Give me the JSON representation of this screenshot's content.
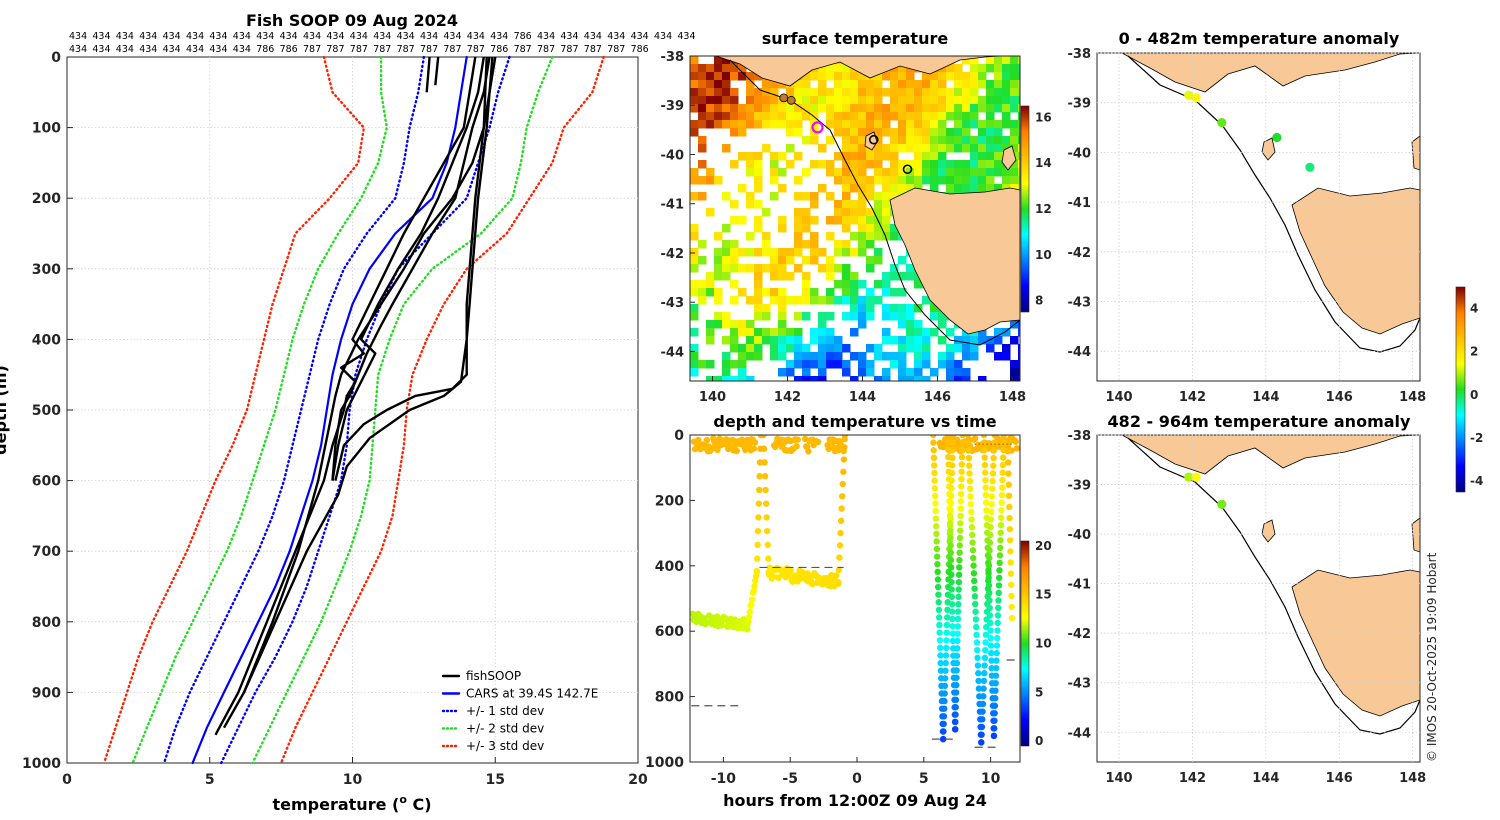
{
  "chart_data": [
    {
      "type": "line",
      "title": "Fish SOOP 09 Aug 2024",
      "xlabel": "temperature (o C)",
      "xlabel_unit_base": "temperature (",
      "xlabel_unit_sup": "o",
      "xlabel_unit_tail": " C)",
      "ylabel": "depth (m)",
      "xlim": [
        0,
        20
      ],
      "ylim": [
        0,
        1000
      ],
      "y_reversed": true,
      "xticks": [
        "0",
        "5",
        "10",
        "15",
        "20"
      ],
      "yticks": [
        "0",
        "100",
        "200",
        "300",
        "400",
        "500",
        "600",
        "700",
        "800",
        "900",
        "1000"
      ],
      "id_row1": [
        "434",
        "434",
        "434",
        "434",
        "434",
        "434",
        "434",
        "434",
        "434",
        "434",
        "434",
        "434",
        "434",
        "434",
        "434",
        "434",
        "434",
        "434",
        "434",
        "786",
        "434",
        "434",
        "434",
        "434",
        "434",
        "434",
        "434"
      ],
      "id_row2": [
        "434",
        "434",
        "434",
        "434",
        "434",
        "434",
        "434",
        "434",
        "786",
        "786",
        "787",
        "787",
        "787",
        "787",
        "787",
        "787",
        "787",
        "787",
        "786",
        "787",
        "787",
        "787",
        "787",
        "787",
        "786"
      ],
      "legend": [
        "fishSOOP",
        "CARS at 39.4S 142.7E",
        "+/- 1 std dev",
        "+/- 2 std dev",
        "+/- 3 std dev"
      ],
      "series": [
        {
          "name": "CARS at 39.4S 142.7E",
          "color": "#0000ff",
          "depth": [
            0,
            50,
            100,
            150,
            200,
            250,
            300,
            350,
            400,
            450,
            500,
            550,
            600,
            650,
            700,
            750,
            800,
            850,
            900,
            950,
            1000
          ],
          "temp": [
            14.0,
            13.8,
            13.6,
            13.3,
            12.8,
            11.5,
            10.6,
            10.0,
            9.6,
            9.3,
            9.1,
            8.9,
            8.6,
            8.2,
            7.8,
            7.3,
            6.7,
            6.1,
            5.5,
            4.9,
            4.4
          ]
        },
        {
          "name": "+/- 1 std dev lower",
          "color": "#0000ff",
          "depth": [
            0,
            50,
            100,
            150,
            200,
            250,
            300,
            350,
            400,
            450,
            500,
            550,
            600,
            650,
            700,
            750,
            800,
            850,
            900,
            950,
            1000
          ],
          "temp": [
            12.5,
            12.3,
            12.0,
            11.8,
            11.5,
            10.5,
            9.7,
            9.2,
            8.8,
            8.5,
            8.2,
            7.9,
            7.6,
            7.2,
            6.7,
            6.1,
            5.5,
            4.9,
            4.3,
            3.8,
            3.4
          ]
        },
        {
          "name": "+/- 1 std dev upper",
          "color": "#0000ff",
          "depth": [
            0,
            50,
            100,
            150,
            200,
            250,
            300,
            350,
            400,
            450,
            500,
            550,
            600,
            650,
            700,
            750,
            800,
            850,
            900,
            950,
            1000
          ],
          "temp": [
            15.5,
            15.1,
            14.8,
            14.4,
            14.0,
            12.8,
            11.6,
            11.0,
            10.5,
            10.1,
            9.9,
            9.8,
            9.6,
            9.2,
            8.8,
            8.4,
            7.9,
            7.3,
            6.6,
            6.0,
            5.4
          ]
        },
        {
          "name": "+/- 2 std dev lower",
          "color": "#22dd22",
          "depth": [
            0,
            50,
            100,
            150,
            200,
            250,
            300,
            350,
            400,
            450,
            500,
            550,
            600,
            650,
            700,
            750,
            800,
            850,
            900,
            950,
            1000
          ],
          "temp": [
            11.0,
            11.0,
            11.2,
            10.9,
            10.3,
            9.5,
            8.8,
            8.3,
            7.9,
            7.6,
            7.3,
            6.9,
            6.5,
            6.1,
            5.6,
            5.0,
            4.4,
            3.8,
            3.3,
            2.8,
            2.3
          ]
        },
        {
          "name": "+/- 2 std dev upper",
          "color": "#22dd22",
          "depth": [
            0,
            50,
            100,
            150,
            200,
            250,
            300,
            350,
            400,
            450,
            500,
            550,
            600,
            650,
            700,
            750,
            800,
            850,
            900,
            950,
            1000
          ],
          "temp": [
            17.0,
            16.5,
            16.1,
            15.9,
            15.6,
            14.5,
            12.8,
            11.8,
            11.3,
            10.9,
            10.8,
            10.7,
            10.6,
            10.3,
            9.9,
            9.4,
            8.9,
            8.3,
            7.7,
            7.1,
            6.5
          ]
        },
        {
          "name": "+/- 3 std dev lower",
          "color": "#ff2200",
          "depth": [
            0,
            50,
            100,
            150,
            200,
            250,
            300,
            350,
            400,
            450,
            500,
            550,
            600,
            650,
            700,
            750,
            800,
            850,
            900,
            950,
            1000
          ],
          "temp": [
            9.0,
            9.3,
            10.4,
            10.2,
            9.2,
            8.0,
            7.6,
            7.2,
            6.9,
            6.6,
            6.3,
            5.8,
            5.2,
            4.7,
            4.2,
            3.6,
            3.0,
            2.5,
            2.1,
            1.7,
            1.3
          ]
        },
        {
          "name": "+/- 3 std dev upper",
          "color": "#ff2200",
          "depth": [
            0,
            50,
            100,
            150,
            200,
            250,
            300,
            350,
            400,
            450,
            500,
            550,
            600,
            650,
            700,
            750,
            800,
            850,
            900,
            950,
            1000
          ],
          "temp": [
            18.8,
            18.4,
            17.4,
            17.0,
            16.2,
            15.4,
            14.0,
            13.2,
            12.6,
            12.1,
            11.9,
            11.8,
            11.6,
            11.4,
            11.0,
            10.4,
            9.8,
            9.2,
            8.6,
            8.0,
            7.5
          ]
        }
      ],
      "fish_profiles": [
        {
          "depth": [
            0,
            50
          ],
          "temp": [
            12.7,
            12.6
          ]
        },
        {
          "depth": [
            0,
            40
          ],
          "temp": [
            13.0,
            12.9
          ]
        },
        {
          "depth": [
            0,
            50,
            100,
            200,
            250,
            300,
            350,
            380,
            420,
            450,
            480,
            500,
            550,
            600
          ],
          "temp": [
            14.8,
            14.6,
            14.2,
            13.6,
            12.8,
            12.1,
            11.4,
            11.0,
            10.5,
            10.2,
            9.9,
            9.6,
            9.4,
            9.3
          ]
        },
        {
          "depth": [
            0,
            50,
            100,
            150,
            200,
            250,
            300,
            350,
            400,
            450,
            480,
            520,
            560,
            600,
            700,
            800,
            900,
            950
          ],
          "temp": [
            15.0,
            14.8,
            14.6,
            14.2,
            13.5,
            12.5,
            11.8,
            11.0,
            10.2,
            9.6,
            9.4,
            9.2,
            9.0,
            8.8,
            8.1,
            7.2,
            6.2,
            5.5
          ]
        },
        {
          "depth": [
            0,
            50,
            100,
            150,
            200,
            250,
            300,
            350,
            400,
            420,
            440,
            460,
            480,
            500,
            550,
            600,
            700,
            800,
            900,
            960
          ],
          "temp": [
            14.3,
            14.1,
            13.9,
            13.2,
            12.5,
            11.8,
            11.2,
            10.6,
            10.0,
            10.4,
            9.6,
            10.1,
            9.8,
            9.7,
            9.3,
            9.0,
            8.0,
            7.0,
            6.0,
            5.2
          ]
        },
        {
          "depth": [
            0,
            50,
            100,
            150,
            200,
            250,
            300,
            350,
            400,
            420,
            460,
            500,
            550,
            600
          ],
          "temp": [
            14.6,
            14.4,
            14.0,
            13.5,
            13.0,
            12.4,
            11.6,
            10.9,
            10.3,
            10.8,
            10.3,
            9.8,
            9.5,
            9.3
          ]
        },
        {
          "depth": [
            0,
            100,
            200,
            300,
            350,
            400,
            450,
            470,
            480,
            500,
            520,
            550,
            600
          ],
          "temp": [
            14.9,
            14.7,
            14.4,
            14.2,
            14.1,
            14.0,
            14.0,
            13.5,
            12.2,
            11.2,
            10.4,
            9.7,
            9.4
          ]
        },
        {
          "depth": [
            0,
            100,
            200,
            300,
            350,
            400,
            460,
            480,
            500,
            540,
            580,
            620,
            700,
            800,
            900
          ],
          "temp": [
            14.7,
            14.6,
            14.3,
            14.1,
            14.0,
            14.0,
            13.8,
            13.2,
            12.0,
            10.6,
            9.8,
            9.5,
            8.4,
            7.3,
            6.2
          ]
        }
      ]
    },
    {
      "type": "heatmap",
      "title": "surface temperature",
      "xticks": [
        "140",
        "142",
        "144",
        "146",
        "148"
      ],
      "yticks": [
        "-38",
        "-39",
        "-40",
        "-41",
        "-42",
        "-43",
        "-44"
      ],
      "lon_range": [
        139.4,
        148.2
      ],
      "lat_range": [
        -44.6,
        -38.0
      ],
      "colorbar_ticks": [
        "16",
        "14",
        "12",
        "10",
        "8"
      ],
      "colorbar_range": [
        7.5,
        16.5
      ]
    },
    {
      "type": "scatter",
      "title": "depth and temperature vs time",
      "xlabel": "hours from 12:00Z 09 Aug 24",
      "xlim": [
        -12.5,
        12.2
      ],
      "ylim": [
        0,
        1000
      ],
      "y_reversed": true,
      "xticks": [
        "-10",
        "-5",
        "0",
        "5",
        "10"
      ],
      "yticks": [
        "0",
        "200",
        "400",
        "600",
        "800",
        "1000"
      ],
      "colorbar_ticks": [
        "20",
        "15",
        "10",
        "5",
        "0"
      ],
      "colorbar_range": [
        -0.5,
        20.5
      ]
    },
    {
      "type": "scatter",
      "title": "0 - 482m temperature anomaly",
      "xticks": [
        "140",
        "142",
        "144",
        "146",
        "148"
      ],
      "yticks": [
        "-38",
        "-39",
        "-40",
        "-41",
        "-42",
        "-43",
        "-44"
      ],
      "points": [
        {
          "lon": 141.9,
          "lat": -38.85,
          "anom": 1.3
        },
        {
          "lon": 142.1,
          "lat": -38.9,
          "anom": 1.6
        },
        {
          "lon": 142.8,
          "lat": -39.4,
          "anom": 0.6
        },
        {
          "lon": 144.3,
          "lat": -39.7,
          "anom": 0.2
        },
        {
          "lon": 145.2,
          "lat": -40.3,
          "anom": -0.2
        }
      ]
    },
    {
      "type": "scatter",
      "title": "482 - 964m temperature anomaly",
      "xticks": [
        "140",
        "142",
        "144",
        "146",
        "148"
      ],
      "yticks": [
        "-38",
        "-39",
        "-40",
        "-41",
        "-42",
        "-43",
        "-44"
      ],
      "points": [
        {
          "lon": 141.9,
          "lat": -38.85,
          "anom": 1.0
        },
        {
          "lon": 142.1,
          "lat": -38.85,
          "anom": 1.5
        },
        {
          "lon": 142.8,
          "lat": -39.4,
          "anom": 0.7
        }
      ],
      "colorbar_ticks": [
        "4",
        "2",
        "0",
        "-2",
        "-4"
      ],
      "colorbar_range": [
        -4.5,
        5
      ]
    }
  ],
  "credit": "© IMOS 20-Oct-2025 19:09 Hobart",
  "colors": {
    "land": "#f8c896",
    "fish": "#000000",
    "cars": "#0000ff",
    "std1": "#0000ff",
    "std2": "#22dd22",
    "std3": "#ff2200"
  }
}
